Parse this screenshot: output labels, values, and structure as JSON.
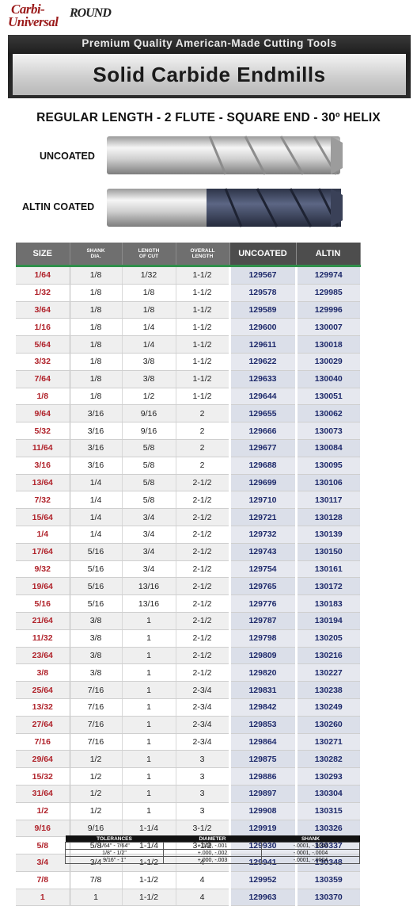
{
  "logo": {
    "line1": "Carbi-",
    "line2": "Universal",
    "brand2": "ROUND"
  },
  "banner": {
    "tagline": "Premium Quality American-Made Cutting Tools",
    "title": "Solid Carbide Endmills"
  },
  "subtitle": "REGULAR LENGTH - 2 FLUTE - SQUARE END - 30º HELIX",
  "tools": [
    {
      "label": "UNCOATED",
      "coating_color": "#c9c9c9"
    },
    {
      "label": "ALTIN COATED",
      "coating_color": "#4a5270"
    }
  ],
  "table": {
    "headers": {
      "size": "SIZE",
      "shank": [
        "SHANK",
        "DIA."
      ],
      "loc": [
        "LENGTH",
        "OF CUT"
      ],
      "oal": [
        "OVERALL",
        "LENGTH"
      ],
      "uncoated": "UNCOATED",
      "altin": "ALTIN"
    },
    "rows": [
      [
        "1/64",
        "1/8",
        "1/32",
        "1-1/2",
        "129567",
        "129974"
      ],
      [
        "1/32",
        "1/8",
        "1/8",
        "1-1/2",
        "129578",
        "129985"
      ],
      [
        "3/64",
        "1/8",
        "1/8",
        "1-1/2",
        "129589",
        "129996"
      ],
      [
        "1/16",
        "1/8",
        "1/4",
        "1-1/2",
        "129600",
        "130007"
      ],
      [
        "5/64",
        "1/8",
        "1/4",
        "1-1/2",
        "129611",
        "130018"
      ],
      [
        "3/32",
        "1/8",
        "3/8",
        "1-1/2",
        "129622",
        "130029"
      ],
      [
        "7/64",
        "1/8",
        "3/8",
        "1-1/2",
        "129633",
        "130040"
      ],
      [
        "1/8",
        "1/8",
        "1/2",
        "1-1/2",
        "129644",
        "130051"
      ],
      [
        "9/64",
        "3/16",
        "9/16",
        "2",
        "129655",
        "130062"
      ],
      [
        "5/32",
        "3/16",
        "9/16",
        "2",
        "129666",
        "130073"
      ],
      [
        "11/64",
        "3/16",
        "5/8",
        "2",
        "129677",
        "130084"
      ],
      [
        "3/16",
        "3/16",
        "5/8",
        "2",
        "129688",
        "130095"
      ],
      [
        "13/64",
        "1/4",
        "5/8",
        "2-1/2",
        "129699",
        "130106"
      ],
      [
        "7/32",
        "1/4",
        "5/8",
        "2-1/2",
        "129710",
        "130117"
      ],
      [
        "15/64",
        "1/4",
        "3/4",
        "2-1/2",
        "129721",
        "130128"
      ],
      [
        "1/4",
        "1/4",
        "3/4",
        "2-1/2",
        "129732",
        "130139"
      ],
      [
        "17/64",
        "5/16",
        "3/4",
        "2-1/2",
        "129743",
        "130150"
      ],
      [
        "9/32",
        "5/16",
        "3/4",
        "2-1/2",
        "129754",
        "130161"
      ],
      [
        "19/64",
        "5/16",
        "13/16",
        "2-1/2",
        "129765",
        "130172"
      ],
      [
        "5/16",
        "5/16",
        "13/16",
        "2-1/2",
        "129776",
        "130183"
      ],
      [
        "21/64",
        "3/8",
        "1",
        "2-1/2",
        "129787",
        "130194"
      ],
      [
        "11/32",
        "3/8",
        "1",
        "2-1/2",
        "129798",
        "130205"
      ],
      [
        "23/64",
        "3/8",
        "1",
        "2-1/2",
        "129809",
        "130216"
      ],
      [
        "3/8",
        "3/8",
        "1",
        "2-1/2",
        "129820",
        "130227"
      ],
      [
        "25/64",
        "7/16",
        "1",
        "2-3/4",
        "129831",
        "130238"
      ],
      [
        "13/32",
        "7/16",
        "1",
        "2-3/4",
        "129842",
        "130249"
      ],
      [
        "27/64",
        "7/16",
        "1",
        "2-3/4",
        "129853",
        "130260"
      ],
      [
        "7/16",
        "7/16",
        "1",
        "2-3/4",
        "129864",
        "130271"
      ],
      [
        "29/64",
        "1/2",
        "1",
        "3",
        "129875",
        "130282"
      ],
      [
        "15/32",
        "1/2",
        "1",
        "3",
        "129886",
        "130293"
      ],
      [
        "31/64",
        "1/2",
        "1",
        "3",
        "129897",
        "130304"
      ],
      [
        "1/2",
        "1/2",
        "1",
        "3",
        "129908",
        "130315"
      ],
      [
        "9/16",
        "9/16",
        "1-1/4",
        "3-1/2",
        "129919",
        "130326"
      ],
      [
        "5/8",
        "5/8",
        "1-1/4",
        "3-1/2",
        "129930",
        "130337"
      ],
      [
        "3/4",
        "3/4",
        "1-1/2",
        "4",
        "129941",
        "130348"
      ],
      [
        "7/8",
        "7/8",
        "1-1/2",
        "4",
        "129952",
        "130359"
      ],
      [
        "1",
        "1",
        "1-1/2",
        "4",
        "129963",
        "130370"
      ]
    ]
  },
  "tolerances": {
    "headers": [
      "TOLERANCES",
      "DIAMETER",
      "SHANK"
    ],
    "rows": [
      [
        "1/64\" - 7/64\"",
        "+.000, -.001",
        "-.0001, -.0004"
      ],
      [
        "1/8\" - 1/2\"",
        "+.000, -.002",
        "-.0001, -.0004"
      ],
      [
        "9/16\" - 1\"",
        "+.000, -.003",
        "-.0001, -.0004"
      ]
    ]
  }
}
